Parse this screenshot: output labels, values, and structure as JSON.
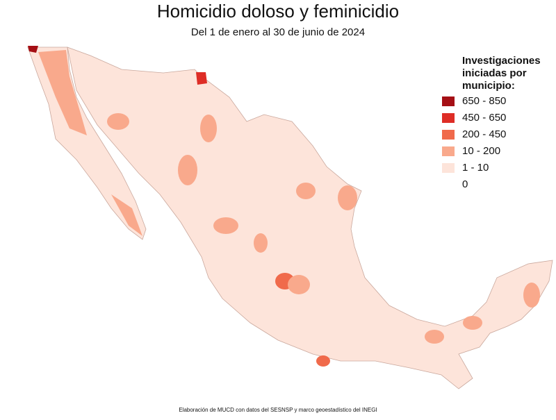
{
  "header": {
    "title": "Homicidio doloso y feminicidio",
    "subtitle": "Del 1 de enero al 30 de junio de 2024"
  },
  "legend": {
    "title_lines": [
      "Investigaciones",
      "iniciadas por",
      "municipio:"
    ],
    "items": [
      {
        "label": "650 - 850",
        "color": "#a50f15"
      },
      {
        "label": "450 - 650",
        "color": "#de2d26"
      },
      {
        "label": "200 - 450",
        "color": "#f06a4b"
      },
      {
        "label": "10 - 200",
        "color": "#f9a98c"
      },
      {
        "label": "1 - 10",
        "color": "#fde4da"
      },
      {
        "label": "0",
        "color": "#ffffff"
      }
    ]
  },
  "footer": {
    "source": "Elaboración de MUCD con datos del SESNSP y marco geoestadístico del INEGI"
  }
}
